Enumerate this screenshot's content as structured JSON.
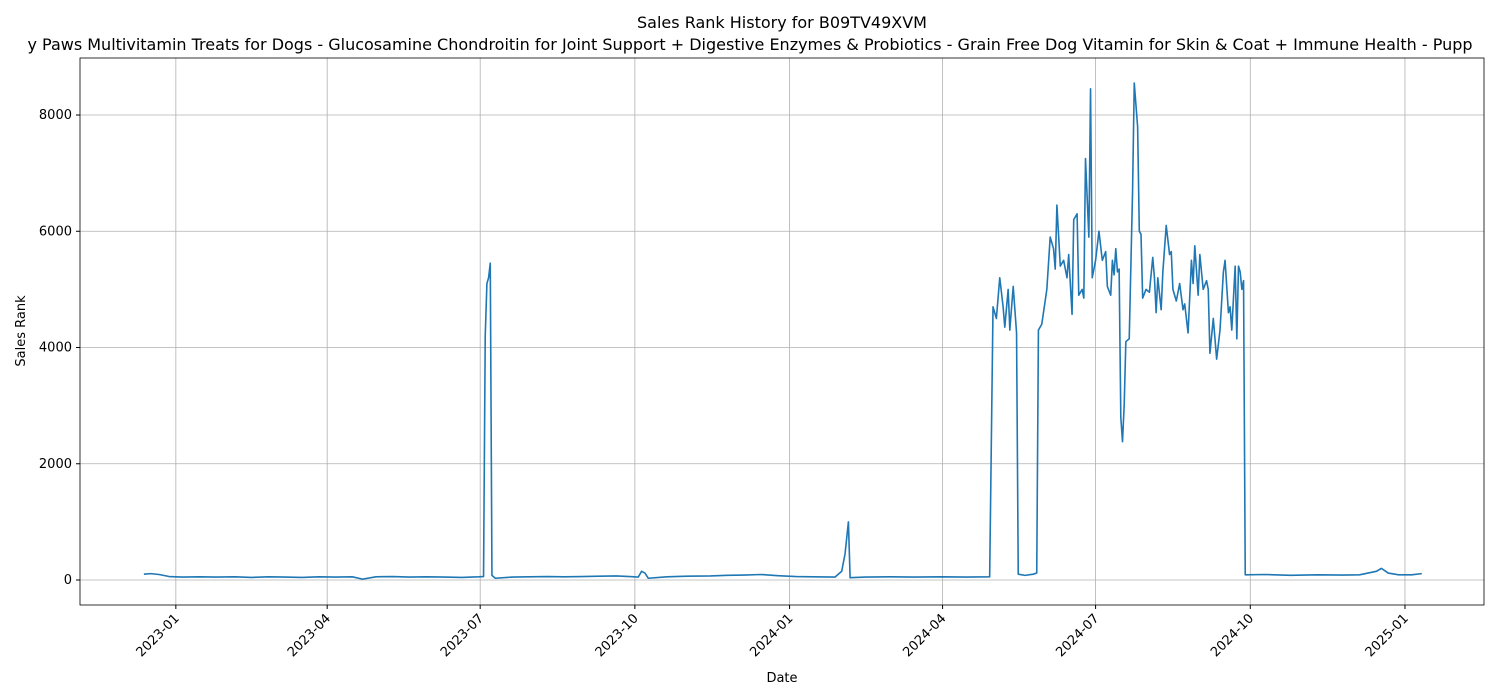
{
  "chart_data": {
    "type": "line",
    "title": "Sales Rank History for B09TV49XVM",
    "subtitle": "y Paws Multivitamin Treats for Dogs - Glucosamine Chondroitin for Joint Support + Digestive Enzymes & Probiotics - Grain Free Dog Vitamin for Skin & Coat + Immune Health - Pupp",
    "x_label": "Date",
    "y_label": "Sales Rank",
    "color": "#1f77b4",
    "grid": true,
    "xlim": [
      "2022-11-05",
      "2025-02-17"
    ],
    "ylim": [
      -430,
      8981
    ],
    "yticks": [
      0,
      2000,
      4000,
      6000,
      8000
    ],
    "xticks": [
      {
        "value": "2023-01-01",
        "label": "2023-01"
      },
      {
        "value": "2023-04-01",
        "label": "2023-04"
      },
      {
        "value": "2023-07-01",
        "label": "2023-07"
      },
      {
        "value": "2023-10-01",
        "label": "2023-10"
      },
      {
        "value": "2024-01-01",
        "label": "2024-01"
      },
      {
        "value": "2024-04-01",
        "label": "2024-04"
      },
      {
        "value": "2024-07-01",
        "label": "2024-07"
      },
      {
        "value": "2024-10-01",
        "label": "2024-10"
      },
      {
        "value": "2025-01-01",
        "label": "2025-01"
      }
    ],
    "x": [
      "2022-12-13",
      "2022-12-17",
      "2022-12-22",
      "2022-12-28",
      "2023-01-05",
      "2023-01-15",
      "2023-01-25",
      "2023-02-05",
      "2023-02-15",
      "2023-02-25",
      "2023-03-07",
      "2023-03-17",
      "2023-03-27",
      "2023-04-06",
      "2023-04-16",
      "2023-04-22",
      "2023-04-30",
      "2023-05-10",
      "2023-05-20",
      "2023-05-30",
      "2023-06-10",
      "2023-06-20",
      "2023-06-30",
      "2023-07-03",
      "2023-07-04",
      "2023-07-05",
      "2023-07-06",
      "2023-07-07",
      "2023-07-08",
      "2023-07-10",
      "2023-07-20",
      "2023-07-30",
      "2023-08-10",
      "2023-08-20",
      "2023-08-30",
      "2023-09-10",
      "2023-09-20",
      "2023-09-28",
      "2023-10-03",
      "2023-10-05",
      "2023-10-07",
      "2023-10-09",
      "2023-10-20",
      "2023-11-01",
      "2023-11-15",
      "2023-11-25",
      "2023-12-05",
      "2023-12-15",
      "2023-12-25",
      "2024-01-05",
      "2024-01-15",
      "2024-01-28",
      "2024-02-01",
      "2024-02-03",
      "2024-02-05",
      "2024-02-06",
      "2024-02-15",
      "2024-03-01",
      "2024-03-15",
      "2024-04-01",
      "2024-04-15",
      "2024-04-29",
      "2024-05-01",
      "2024-05-03",
      "2024-05-05",
      "2024-05-07",
      "2024-05-08",
      "2024-05-10",
      "2024-05-11",
      "2024-05-13",
      "2024-05-15",
      "2024-05-16",
      "2024-05-20",
      "2024-05-25",
      "2024-05-27",
      "2024-05-28",
      "2024-05-30",
      "2024-06-02",
      "2024-06-04",
      "2024-06-06",
      "2024-06-07",
      "2024-06-08",
      "2024-06-10",
      "2024-06-12",
      "2024-06-14",
      "2024-06-15",
      "2024-06-17",
      "2024-06-18",
      "2024-06-20",
      "2024-06-21",
      "2024-06-23",
      "2024-06-24",
      "2024-06-25",
      "2024-06-27",
      "2024-06-28",
      "2024-06-29",
      "2024-07-01",
      "2024-07-03",
      "2024-07-05",
      "2024-07-07",
      "2024-07-08",
      "2024-07-10",
      "2024-07-11",
      "2024-07-12",
      "2024-07-13",
      "2024-07-14",
      "2024-07-15",
      "2024-07-16",
      "2024-07-17",
      "2024-07-18",
      "2024-07-19",
      "2024-07-21",
      "2024-07-23",
      "2024-07-24",
      "2024-07-26",
      "2024-07-27",
      "2024-07-28",
      "2024-07-29",
      "2024-07-31",
      "2024-08-02",
      "2024-08-04",
      "2024-08-05",
      "2024-08-06",
      "2024-08-07",
      "2024-08-09",
      "2024-08-10",
      "2024-08-12",
      "2024-08-14",
      "2024-08-15",
      "2024-08-16",
      "2024-08-18",
      "2024-08-20",
      "2024-08-22",
      "2024-08-23",
      "2024-08-25",
      "2024-08-27",
      "2024-08-28",
      "2024-08-29",
      "2024-08-31",
      "2024-09-01",
      "2024-09-03",
      "2024-09-05",
      "2024-09-06",
      "2024-09-07",
      "2024-09-09",
      "2024-09-11",
      "2024-09-13",
      "2024-09-15",
      "2024-09-16",
      "2024-09-18",
      "2024-09-19",
      "2024-09-20",
      "2024-09-22",
      "2024-09-23",
      "2024-09-24",
      "2024-09-25",
      "2024-09-26",
      "2024-09-27",
      "2024-09-28",
      "2024-10-10",
      "2024-10-25",
      "2024-11-10",
      "2024-11-25",
      "2024-12-05",
      "2024-12-15",
      "2024-12-18",
      "2024-12-22",
      "2024-12-28",
      "2025-01-05",
      "2025-01-11"
    ],
    "values": [
      100,
      110,
      95,
      60,
      50,
      55,
      50,
      55,
      45,
      55,
      50,
      45,
      55,
      50,
      55,
      15,
      55,
      60,
      50,
      55,
      50,
      45,
      55,
      60,
      4200,
      5100,
      5200,
      5450,
      80,
      30,
      50,
      55,
      60,
      55,
      60,
      65,
      70,
      60,
      50,
      150,
      120,
      30,
      55,
      65,
      70,
      80,
      85,
      95,
      75,
      60,
      55,
      50,
      150,
      450,
      1000,
      40,
      50,
      55,
      50,
      55,
      50,
      55,
      4700,
      4500,
      5200,
      4700,
      4350,
      5000,
      4300,
      5050,
      4250,
      100,
      80,
      100,
      120,
      4300,
      4400,
      5000,
      5900,
      5700,
      5350,
      6450,
      5400,
      5500,
      5200,
      5600,
      4570,
      6200,
      6300,
      4900,
      5000,
      4850,
      7250,
      5900,
      8450,
      5200,
      5500,
      6000,
      5500,
      5650,
      5050,
      4900,
      5500,
      5250,
      5700,
      5300,
      5350,
      2800,
      2380,
      3000,
      4100,
      4150,
      6700,
      8550,
      7800,
      6000,
      5950,
      4850,
      5000,
      4950,
      5550,
      5200,
      4600,
      5200,
      4650,
      5300,
      6100,
      5600,
      5650,
      5000,
      4800,
      5100,
      4650,
      4750,
      4250,
      5500,
      5100,
      5750,
      4900,
      5600,
      5000,
      5150,
      5000,
      3900,
      4500,
      3800,
      4300,
      5300,
      5500,
      4600,
      4700,
      4300,
      5400,
      4150,
      5400,
      5300,
      5000,
      5150,
      90,
      95,
      80,
      90,
      85,
      90,
      150,
      200,
      120,
      90,
      90,
      110
    ]
  }
}
